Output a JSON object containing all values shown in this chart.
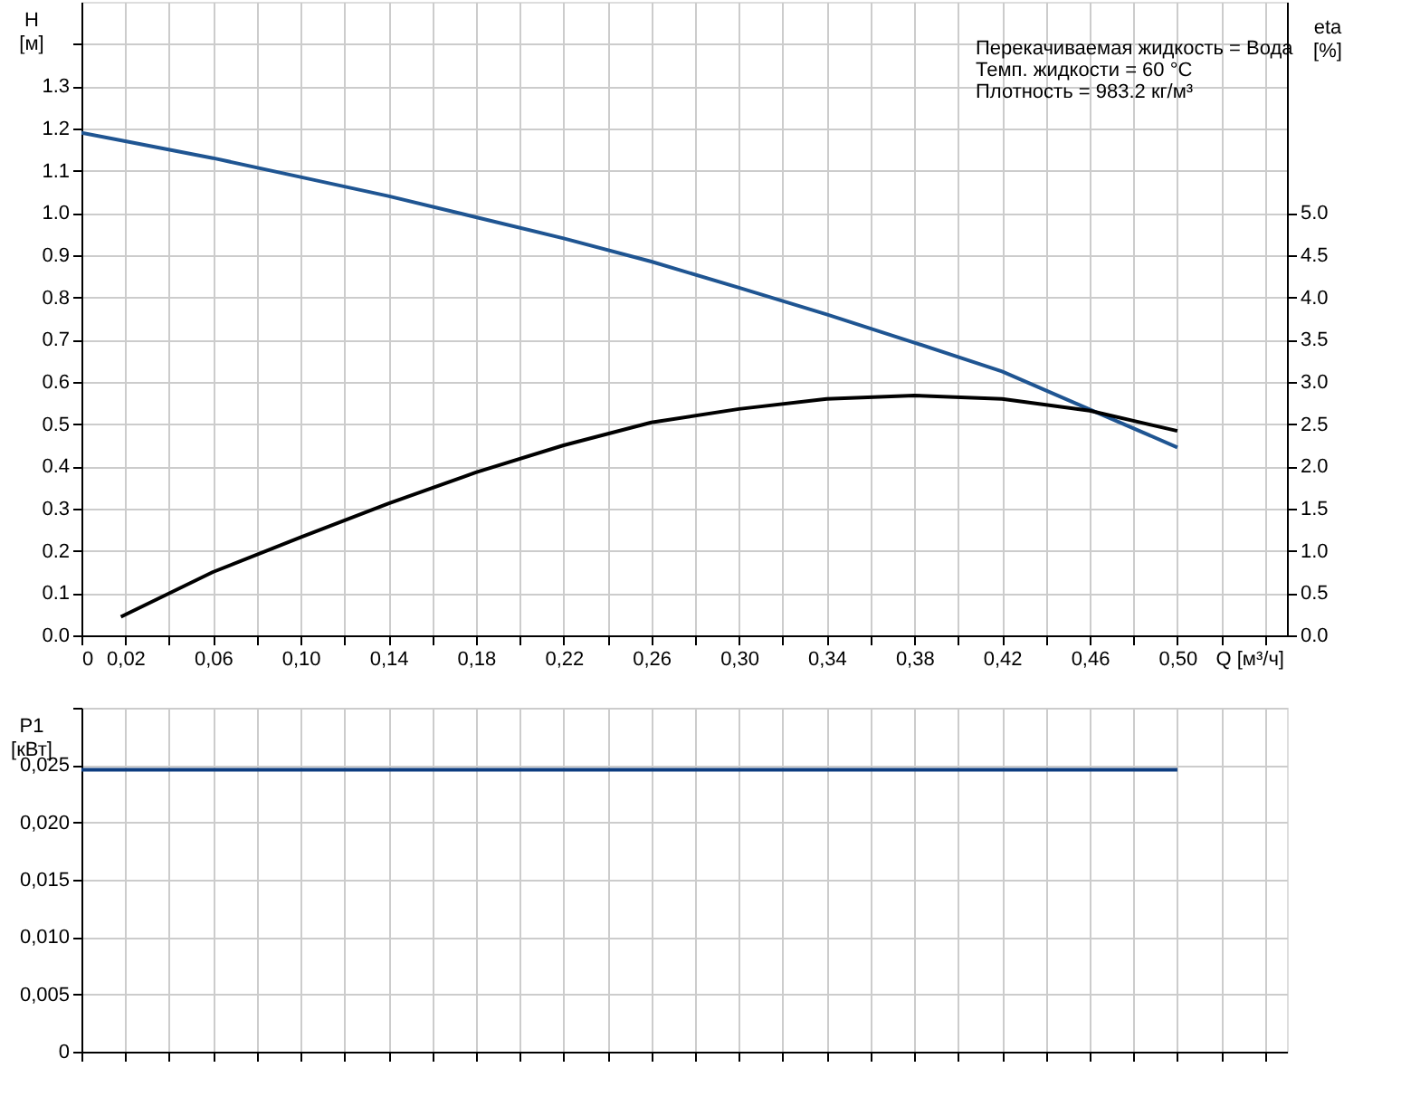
{
  "chart_data": [
    {
      "type": "line",
      "xlabel": "Q [м³/ч]",
      "ylabel": "H [м]",
      "y2label": "eta [%]",
      "grid": true,
      "line_style": "solid",
      "annotations": [
        "Перекачиваемая жидкость = Вода",
        "Темп. жидкости = 60 °C",
        "Плотность = 983.2 кг/м³"
      ],
      "xlim": [
        0,
        0.55
      ],
      "xticks": [
        {
          "value": 0,
          "label": "0"
        },
        {
          "value": 0.02,
          "label": "0,02"
        },
        {
          "value": 0.04,
          "label": null
        },
        {
          "value": 0.06,
          "label": "0,06"
        },
        {
          "value": 0.08,
          "label": null
        },
        {
          "value": 0.1,
          "label": "0,10"
        },
        {
          "value": 0.12,
          "label": null
        },
        {
          "value": 0.14,
          "label": "0,14"
        },
        {
          "value": 0.16,
          "label": null
        },
        {
          "value": 0.18,
          "label": "0,18"
        },
        {
          "value": 0.2,
          "label": null
        },
        {
          "value": 0.22,
          "label": "0,22"
        },
        {
          "value": 0.24,
          "label": null
        },
        {
          "value": 0.26,
          "label": "0,26"
        },
        {
          "value": 0.28,
          "label": null
        },
        {
          "value": 0.3,
          "label": "0,30"
        },
        {
          "value": 0.32,
          "label": null
        },
        {
          "value": 0.34,
          "label": "0,34"
        },
        {
          "value": 0.36,
          "label": null
        },
        {
          "value": 0.38,
          "label": "0,38"
        },
        {
          "value": 0.4,
          "label": null
        },
        {
          "value": 0.42,
          "label": "0,42"
        },
        {
          "value": 0.44,
          "label": null
        },
        {
          "value": 0.46,
          "label": "0,46"
        },
        {
          "value": 0.48,
          "label": null
        },
        {
          "value": 0.5,
          "label": "0,50"
        },
        {
          "value": 0.52,
          "label": null
        },
        {
          "value": 0.54,
          "label": null
        }
      ],
      "ylim": [
        0,
        1.5
      ],
      "yticks": [
        {
          "value": 0,
          "label": "0.0"
        },
        {
          "value": 0.1,
          "label": "0.1"
        },
        {
          "value": 0.2,
          "label": "0.2"
        },
        {
          "value": 0.3,
          "label": "0.3"
        },
        {
          "value": 0.4,
          "label": "0.4"
        },
        {
          "value": 0.5,
          "label": "0.5"
        },
        {
          "value": 0.6,
          "label": "0.6"
        },
        {
          "value": 0.7,
          "label": "0.7"
        },
        {
          "value": 0.8,
          "label": "0.8"
        },
        {
          "value": 0.9,
          "label": "0.9"
        },
        {
          "value": 1,
          "label": "1.0"
        },
        {
          "value": 1.1,
          "label": "1.1"
        },
        {
          "value": 1.2,
          "label": "1.2"
        },
        {
          "value": 1.3,
          "label": "1.3"
        },
        {
          "value": 1.4,
          "label": null
        }
      ],
      "y2lim": [
        0,
        7.5
      ],
      "y2ticks": [
        {
          "value": 0,
          "label": "0.0"
        },
        {
          "value": 0.5,
          "label": "0.5"
        },
        {
          "value": 1,
          "label": "1.0"
        },
        {
          "value": 1.5,
          "label": "1.5"
        },
        {
          "value": 2,
          "label": "2.0"
        },
        {
          "value": 2.5,
          "label": "2.5"
        },
        {
          "value": 3,
          "label": "3.0"
        },
        {
          "value": 3.5,
          "label": "3.5"
        },
        {
          "value": 4,
          "label": "4.0"
        },
        {
          "value": 4.5,
          "label": "4.5"
        },
        {
          "value": 5,
          "label": "5.0"
        }
      ],
      "series": [
        {
          "color": "#1f5592",
          "x": [
            0,
            0.02,
            0.06,
            0.1,
            0.14,
            0.18,
            0.22,
            0.26,
            0.3,
            0.34,
            0.38,
            0.42,
            0.46,
            0.5
          ],
          "values": [
            1.19,
            1.17,
            1.13,
            1.085,
            1.04,
            0.99,
            0.94,
            0.885,
            0.823,
            0.76,
            0.693,
            0.625,
            0.535,
            0.445
          ]
        },
        {
          "axis": "y2",
          "color": "#000000",
          "x": [
            0.018,
            0.06,
            0.1,
            0.14,
            0.18,
            0.22,
            0.26,
            0.3,
            0.34,
            0.38,
            0.42,
            0.46,
            0.5
          ],
          "values": [
            0.22,
            0.75,
            1.16,
            1.56,
            1.93,
            2.25,
            2.52,
            2.68,
            2.8,
            2.84,
            2.8,
            2.66,
            2.42
          ]
        }
      ]
    },
    {
      "type": "line",
      "ylabel": "P1 [кВт]",
      "grid": true,
      "line_style": "solid",
      "tick_labels": "y",
      "xlim": [
        0,
        0.55
      ],
      "xticks": [
        {
          "value": 0,
          "label": null
        },
        {
          "value": 0.02,
          "label": null
        },
        {
          "value": 0.04,
          "label": null
        },
        {
          "value": 0.06,
          "label": null
        },
        {
          "value": 0.08,
          "label": null
        },
        {
          "value": 0.1,
          "label": null
        },
        {
          "value": 0.12,
          "label": null
        },
        {
          "value": 0.14,
          "label": null
        },
        {
          "value": 0.16,
          "label": null
        },
        {
          "value": 0.18,
          "label": null
        },
        {
          "value": 0.2,
          "label": null
        },
        {
          "value": 0.22,
          "label": null
        },
        {
          "value": 0.24,
          "label": null
        },
        {
          "value": 0.26,
          "label": null
        },
        {
          "value": 0.28,
          "label": null
        },
        {
          "value": 0.3,
          "label": null
        },
        {
          "value": 0.32,
          "label": null
        },
        {
          "value": 0.34,
          "label": null
        },
        {
          "value": 0.36,
          "label": null
        },
        {
          "value": 0.38,
          "label": null
        },
        {
          "value": 0.4,
          "label": null
        },
        {
          "value": 0.42,
          "label": null
        },
        {
          "value": 0.44,
          "label": null
        },
        {
          "value": 0.46,
          "label": null
        },
        {
          "value": 0.48,
          "label": null
        },
        {
          "value": 0.5,
          "label": null
        },
        {
          "value": 0.52,
          "label": null
        },
        {
          "value": 0.54,
          "label": null
        }
      ],
      "ylim": [
        0,
        0.03
      ],
      "yticks": [
        {
          "value": 0,
          "label": "0"
        },
        {
          "value": 0.005,
          "label": "0,005"
        },
        {
          "value": 0.01,
          "label": "0,010"
        },
        {
          "value": 0.015,
          "label": "0,015"
        },
        {
          "value": 0.02,
          "label": "0,020"
        },
        {
          "value": 0.025,
          "label": "0,025"
        },
        {
          "value": 0.03,
          "label": null
        }
      ],
      "series": [
        {
          "color": "#0d3d80",
          "x": [
            0,
            0.5
          ],
          "values": [
            0.0246,
            0.0246
          ]
        }
      ]
    }
  ]
}
